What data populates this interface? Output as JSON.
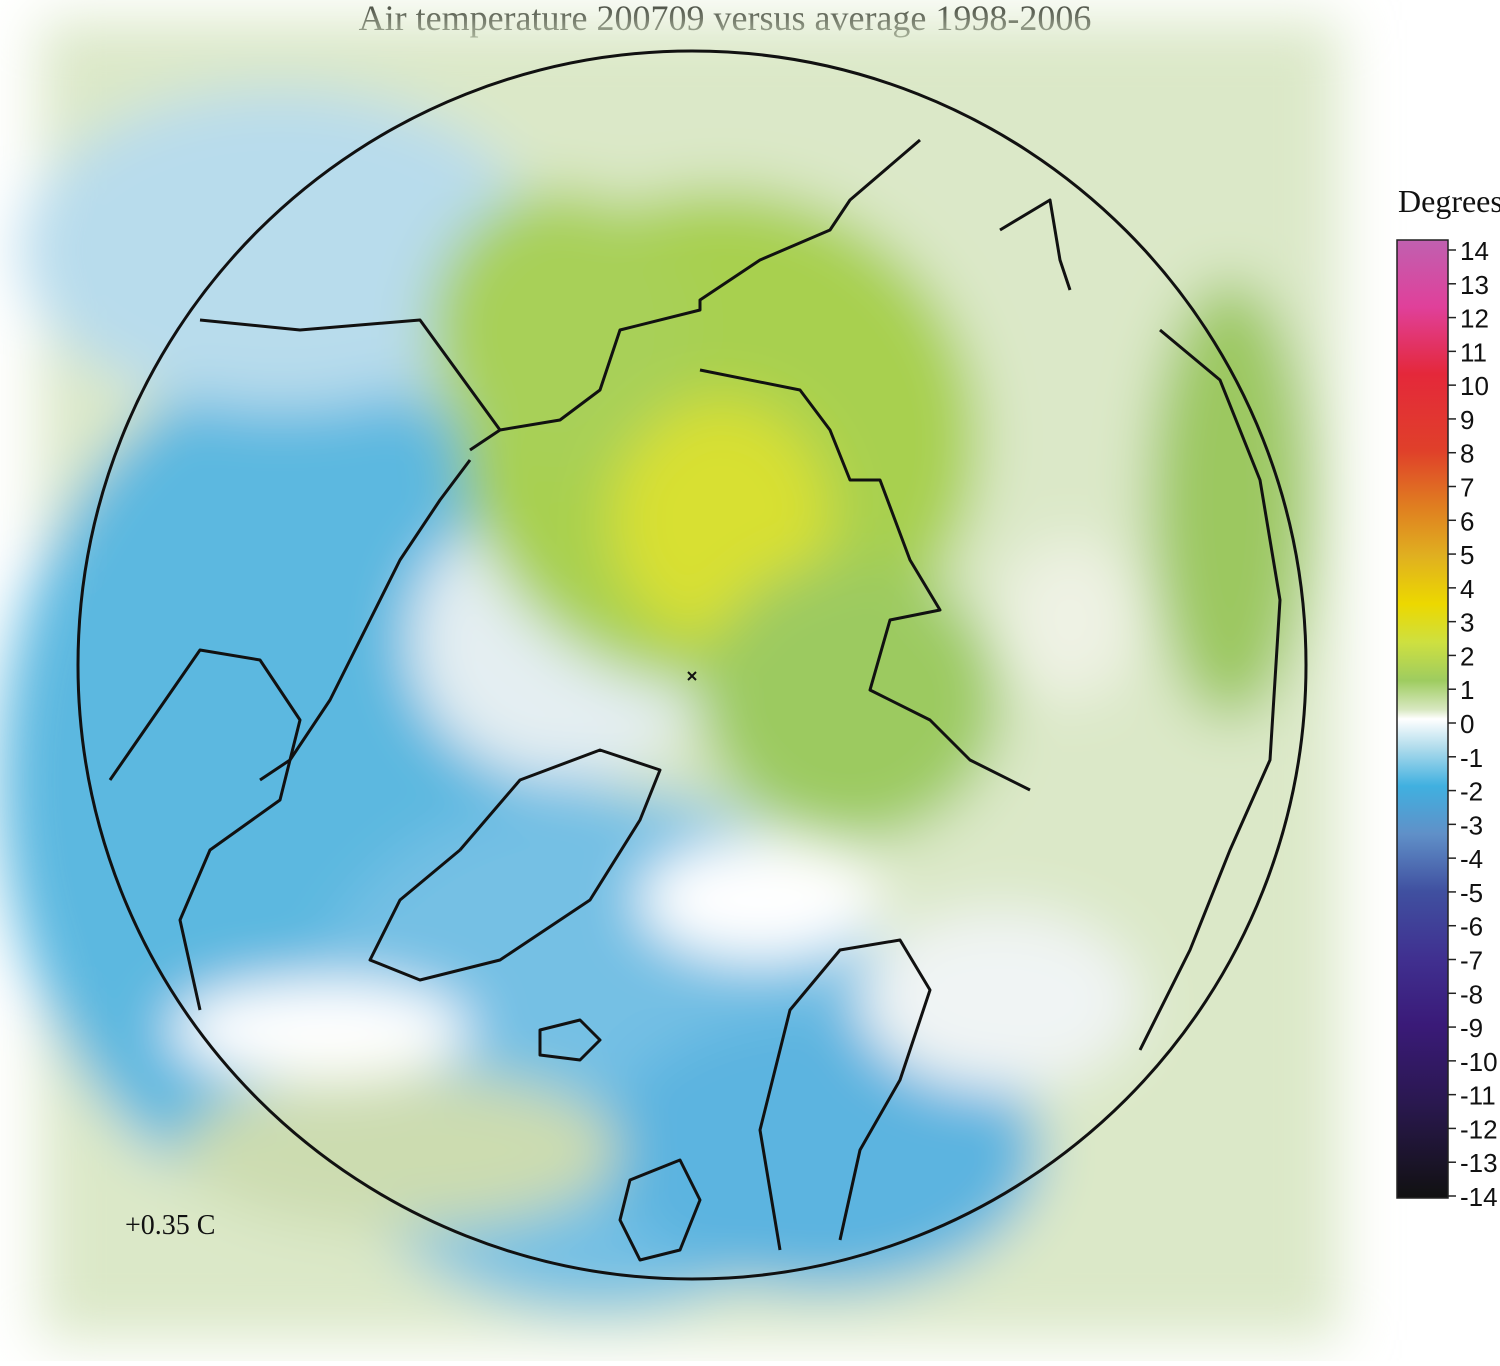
{
  "title": "Air temperature 200709 versus average 1998-2006",
  "colorbar": {
    "label": "Degrees C",
    "range": [
      -14,
      14
    ],
    "ticks": [
      14,
      13,
      12,
      11,
      10,
      9,
      8,
      7,
      6,
      5,
      4,
      3,
      2,
      1,
      0,
      -1,
      -2,
      -3,
      -4,
      -5,
      -6,
      -7,
      -8,
      -9,
      -10,
      -11,
      -12,
      -13,
      -14
    ]
  },
  "annotation": "+0.35 C"
}
